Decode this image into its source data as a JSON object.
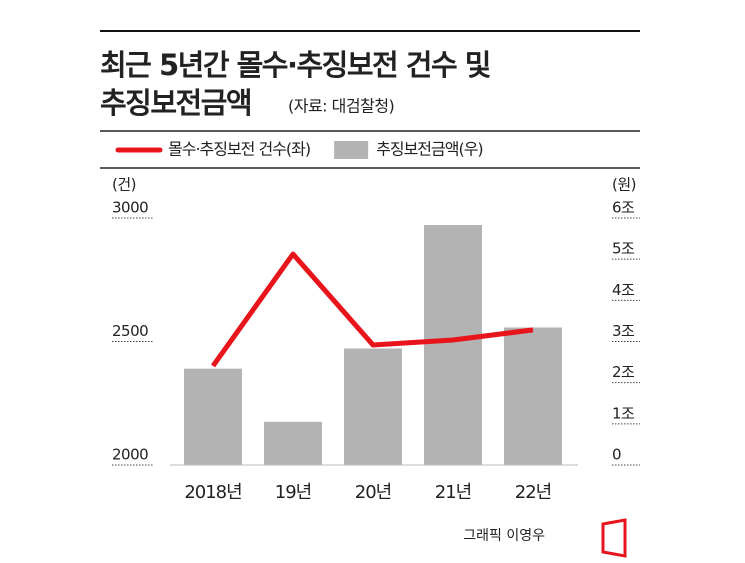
{
  "chart_data": {
    "type": "combo",
    "title_lines": [
      "최근 5년간 몰수·추징보전 건수 및",
      "추징보전금액"
    ],
    "source": "(자료: 대검찰청)",
    "y_label": "(건)",
    "y2_label": "(원)",
    "categories": [
      "2018년",
      "19년",
      "20년",
      "21년",
      "22년"
    ],
    "series": [
      {
        "name": "몰수·추징보전 건수(좌)",
        "type": "line",
        "axis": "y",
        "color": "#e8141c",
        "values": [
          2401,
          2854,
          2486,
          2506,
          2547
        ]
      },
      {
        "name": "추징보전금액(우)",
        "type": "bar",
        "axis": "y2",
        "color": "#b3b3b3",
        "values": [
          2.34,
          1.05,
          2.83,
          5.83,
          3.34
        ]
      }
    ],
    "ylim": [
      2000,
      3000
    ],
    "yticks": [
      2000,
      2500,
      3000
    ],
    "y2lim": [
      0,
      6
    ],
    "y2ticks": [
      0,
      {
        "value": 1,
        "label": "1조"
      },
      {
        "value": 2,
        "label": "2조"
      },
      {
        "value": 3,
        "label": "3조"
      },
      {
        "value": 4,
        "label": "4조"
      },
      {
        "value": 5,
        "label": "5조"
      },
      {
        "value": 6,
        "label": "6조"
      }
    ],
    "credit": "그래픽 이영우"
  }
}
